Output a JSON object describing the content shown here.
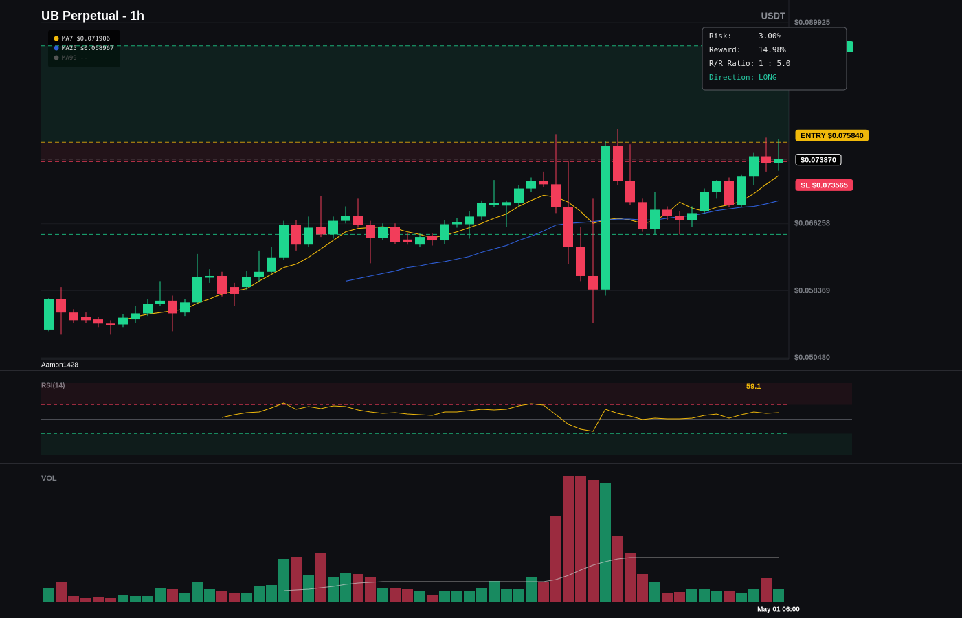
{
  "chart_data": {
    "type": "candlestick",
    "title": "UB Perpetual - 1h",
    "quote": "USDT",
    "watermark": "Aamon1428",
    "up_color": "#1ed68f",
    "down_color": "#f23d5a",
    "categories": [
      null,
      null,
      null,
      null,
      null,
      null,
      null,
      null,
      null,
      null,
      null,
      null,
      null,
      null,
      null,
      null,
      null,
      null,
      null,
      null,
      null,
      null,
      null,
      null,
      null,
      null,
      null,
      null,
      null,
      null,
      null,
      null,
      null,
      null,
      null,
      null,
      null,
      null,
      null,
      null,
      null,
      null,
      null,
      null,
      null,
      null,
      null,
      null,
      null,
      null,
      null,
      null,
      null,
      null,
      null,
      null,
      null,
      null,
      null,
      "May 01 06:00"
    ],
    "open": [
      0.0538,
      0.0574,
      0.0558,
      0.0553,
      0.055,
      0.0545,
      0.0544,
      0.055,
      0.0557,
      0.0568,
      0.0572,
      0.0558,
      0.057,
      0.0599,
      0.0601,
      0.0588,
      0.0588,
      0.06,
      0.0606,
      0.0623,
      0.0661,
      0.0638,
      0.0659,
      0.065,
      0.0666,
      0.0672,
      0.0661,
      0.0646,
      0.0659,
      0.0644,
      0.0638,
      0.0648,
      0.0643,
      0.0662,
      0.0662,
      0.0671,
      0.0685,
      0.0684,
      0.0687,
      0.0704,
      0.0713,
      0.0709,
      0.0682,
      0.0635,
      0.0601,
      0.0585,
      0.0754,
      0.0713,
      0.0688,
      0.0656,
      0.0679,
      0.0672,
      0.0667,
      0.0677,
      0.07,
      0.0713,
      0.0685,
      0.0718,
      0.0742,
      0.0734
    ],
    "high": [
      0.0575,
      0.0588,
      0.0562,
      0.0558,
      0.0553,
      0.0549,
      0.0556,
      0.0566,
      0.0574,
      0.0595,
      0.0578,
      0.0574,
      0.0627,
      0.0609,
      0.0606,
      0.0593,
      0.0607,
      0.0631,
      0.0635,
      0.0666,
      0.0667,
      0.0671,
      0.0695,
      0.0671,
      0.0683,
      0.0692,
      0.0666,
      0.0663,
      0.0663,
      0.0651,
      0.0651,
      0.0651,
      0.0667,
      0.0669,
      0.0677,
      0.069,
      0.0714,
      0.069,
      0.0708,
      0.0717,
      0.0724,
      0.0768,
      0.0736,
      0.0659,
      0.0692,
      0.076,
      0.0774,
      0.0756,
      0.0692,
      0.07,
      0.0683,
      0.0677,
      0.0683,
      0.0704,
      0.0714,
      0.0717,
      0.072,
      0.0746,
      0.0764,
      0.0762
    ],
    "low": [
      0.0536,
      0.0532,
      0.0546,
      0.0546,
      0.0541,
      0.0532,
      0.0541,
      0.0546,
      0.0554,
      0.0566,
      0.0536,
      0.0554,
      0.0569,
      0.0593,
      0.0577,
      0.0566,
      0.0585,
      0.0595,
      0.0604,
      0.062,
      0.0631,
      0.0635,
      0.0647,
      0.0645,
      0.0663,
      0.0658,
      0.0616,
      0.0643,
      0.0639,
      0.0638,
      0.0635,
      0.0637,
      0.0639,
      0.0658,
      0.0645,
      0.0667,
      0.0682,
      0.0659,
      0.0683,
      0.07,
      0.0706,
      0.0675,
      0.0615,
      0.0595,
      0.0546,
      0.0578,
      0.0708,
      0.0685,
      0.0653,
      0.065,
      0.0667,
      0.065,
      0.0659,
      0.0674,
      0.0692,
      0.0682,
      0.0682,
      0.0708,
      0.0724,
      0.0725
    ],
    "close": [
      0.0574,
      0.0558,
      0.0549,
      0.0549,
      0.0545,
      0.0543,
      0.0552,
      0.0557,
      0.0568,
      0.0572,
      0.0557,
      0.057,
      0.06,
      0.0601,
      0.058,
      0.058,
      0.06,
      0.0606,
      0.0623,
      0.0661,
      0.0638,
      0.0658,
      0.065,
      0.0666,
      0.0672,
      0.0661,
      0.0646,
      0.0659,
      0.0641,
      0.0641,
      0.0647,
      0.0643,
      0.0662,
      0.0664,
      0.0671,
      0.0687,
      0.0687,
      0.0688,
      0.0704,
      0.0713,
      0.0709,
      0.0682,
      0.0635,
      0.0601,
      0.0585,
      0.0754,
      0.0713,
      0.0688,
      0.0656,
      0.0679,
      0.0672,
      0.0667,
      0.0675,
      0.07,
      0.0713,
      0.0685,
      0.0718,
      0.0742,
      0.0734,
      0.07387
    ],
    "ylim": [
      0.05048,
      0.089925
    ],
    "yticks": [
      {
        "value": 0.05048,
        "label": "$0.050480"
      },
      {
        "value": 0.058369,
        "label": "$0.058369"
      },
      {
        "value": 0.066258,
        "label": "$0.066258"
      },
      {
        "value": 0.089925,
        "label": "$0.089925"
      }
    ],
    "grid": true,
    "ma": [
      {
        "name": "MA7",
        "label": "$0.071906",
        "color": "#f0b90b",
        "values": [
          null,
          null,
          null,
          null,
          null,
          null,
          0.0549,
          0.0553,
          0.0556,
          0.0558,
          0.056,
          0.0562,
          0.0569,
          0.0574,
          0.058,
          0.0583,
          0.0586,
          0.0595,
          0.0603,
          0.0611,
          0.0615,
          0.0623,
          0.0633,
          0.0643,
          0.0653,
          0.0657,
          0.0658,
          0.0659,
          0.0657,
          0.0653,
          0.065,
          0.0646,
          0.0649,
          0.0653,
          0.0658,
          0.0663,
          0.0669,
          0.0674,
          0.0683,
          0.069,
          0.0696,
          0.0694,
          0.0688,
          0.0677,
          0.0663,
          0.0667,
          0.0669,
          0.0667,
          0.0663,
          0.0666,
          0.0675,
          0.0688,
          0.0681,
          0.0677,
          0.0682,
          0.0685,
          0.0689,
          0.0698,
          0.0709,
          0.071906
        ]
      },
      {
        "name": "MA25",
        "label": "$0.068967",
        "color": "#2f5fd8",
        "values": [
          null,
          null,
          null,
          null,
          null,
          null,
          null,
          null,
          null,
          null,
          null,
          null,
          null,
          null,
          null,
          null,
          null,
          null,
          null,
          null,
          null,
          null,
          null,
          null,
          0.0595,
          0.0598,
          0.0601,
          0.0604,
          0.0607,
          0.0611,
          0.0613,
          0.0616,
          0.0618,
          0.0621,
          0.0624,
          0.0629,
          0.0633,
          0.0637,
          0.0643,
          0.0648,
          0.0654,
          0.0661,
          0.0663,
          0.0664,
          0.0665,
          0.0667,
          0.0668,
          0.0668,
          0.0667,
          0.0667,
          0.0669,
          0.0671,
          0.0672,
          0.0675,
          0.0678,
          0.068,
          0.0682,
          0.0683,
          0.0686,
          0.068967
        ]
      },
      {
        "name": "MA99",
        "label": "--",
        "color": "#555555",
        "values": []
      }
    ],
    "levels": [
      {
        "label": "ENTRY $0.075840",
        "value": 0.07584,
        "color": "#f0b90b",
        "tag_fill": "#f0b90b",
        "tag_text": "#000000"
      },
      {
        "label": "$0.073870",
        "value": 0.07387,
        "color": "#ffffff",
        "tag_fill": "#000000",
        "tag_text": "#ffffff"
      },
      {
        "label": "SL $0.073565",
        "value": 0.073565,
        "color": "#f23d5a",
        "tag_fill": "#f23d5a",
        "tag_text": "#ffffff"
      },
      {
        "value": 0.0872,
        "color": "#1ed68f"
      },
      {
        "value": 0.065,
        "color": "#1ed68f"
      }
    ],
    "tooltip": [
      {
        "label": "Risk:",
        "value": "3.00%",
        "color": "#e6e6e6"
      },
      {
        "label": "Reward:",
        "value": "14.98%",
        "color": "#e6e6e6"
      },
      {
        "label": "R/R Ratio:",
        "value": "1 : 5.0",
        "color": "#e6e6e6"
      },
      {
        "label": "Direction:",
        "value": "LONG",
        "color": "#26c6a0"
      }
    ],
    "rsi": {
      "title": "RSI(14)",
      "color": "#f0b90b",
      "ylim": [
        0,
        100
      ],
      "levels": [
        70,
        50,
        30
      ],
      "values": [
        null,
        null,
        null,
        null,
        null,
        null,
        null,
        null,
        null,
        null,
        null,
        null,
        null,
        null,
        52.4,
        56.2,
        59.0,
        60.0,
        65.7,
        72.4,
        63.8,
        67.6,
        64.8,
        68.6,
        67.6,
        62.9,
        60.0,
        58.1,
        59.0,
        57.1,
        56.2,
        55.2,
        60.0,
        60.0,
        61.9,
        63.8,
        62.9,
        63.8,
        68.6,
        71.4,
        69.5,
        56.2,
        42.9,
        36.2,
        33.3,
        63.8,
        58.1,
        54.3,
        49.5,
        51.4,
        50.5,
        50.5,
        51.4,
        55.2,
        57.1,
        51.4,
        56.2,
        60.0,
        58.1,
        59.1
      ]
    },
    "volume": {
      "title": "VOL",
      "values": [
        20,
        28,
        8,
        5,
        6,
        5,
        10,
        8,
        8,
        20,
        18,
        12,
        28,
        18,
        16,
        12,
        12,
        22,
        24,
        62,
        65,
        38,
        70,
        36,
        42,
        40,
        36,
        20,
        20,
        18,
        16,
        10,
        16,
        16,
        16,
        20,
        30,
        18,
        18,
        36,
        28,
        125,
        183,
        183,
        177,
        173,
        95,
        70,
        40,
        28,
        12,
        14,
        18,
        18,
        16,
        16,
        12,
        18,
        34,
        18
      ],
      "ma_values": [
        null,
        null,
        null,
        null,
        null,
        null,
        null,
        null,
        null,
        null,
        null,
        null,
        null,
        null,
        null,
        null,
        null,
        null,
        null,
        16,
        17,
        18,
        20,
        22,
        25,
        27,
        28,
        29,
        29,
        29,
        29,
        29,
        29,
        29,
        29,
        29,
        29,
        29,
        29,
        29,
        29,
        32,
        38,
        46,
        53,
        58,
        62,
        64,
        64,
        64,
        64,
        64,
        64,
        64,
        64,
        64,
        64,
        64,
        64,
        64
      ]
    }
  }
}
